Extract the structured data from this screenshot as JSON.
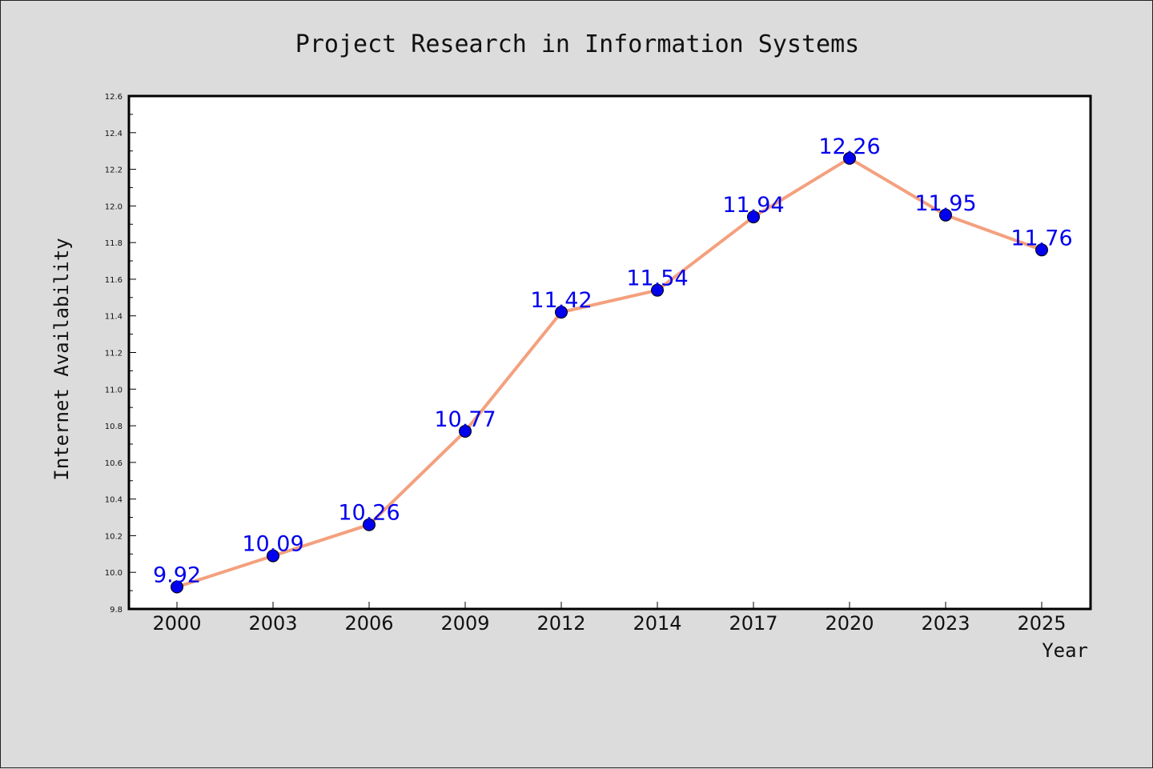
{
  "chart_data": {
    "type": "line",
    "title": "Project Research in Information Systems",
    "xlabel": "Year",
    "ylabel": "Internet Availability",
    "categories": [
      "2000",
      "2003",
      "2006",
      "2009",
      "2012",
      "2014",
      "2017",
      "2020",
      "2023",
      "2025"
    ],
    "series": [
      {
        "values": [
          9.92,
          10.09,
          10.26,
          10.77,
          11.42,
          11.54,
          11.94,
          12.26,
          11.95,
          11.76
        ],
        "labels": [
          "9.92",
          "10.09",
          "10.26",
          "10.77",
          "11.42",
          "11.54",
          "11.94",
          "12.26",
          "11.95",
          "11.76"
        ]
      }
    ],
    "ylim": [
      9.8,
      12.6
    ],
    "yticks": [
      "9.8",
      "10.0",
      "10.2",
      "10.4",
      "10.6",
      "10.8",
      "11.0",
      "11.2",
      "11.4",
      "11.6",
      "11.8",
      "12.0",
      "12.2",
      "12.4",
      "12.6"
    ],
    "grid": false,
    "legend": "none",
    "colors": {
      "line": "#f4a07e",
      "marker": "#0000ee",
      "data_label": "#0000ee",
      "background": "#dcdcdc",
      "plot_background": "#ffffff"
    }
  }
}
